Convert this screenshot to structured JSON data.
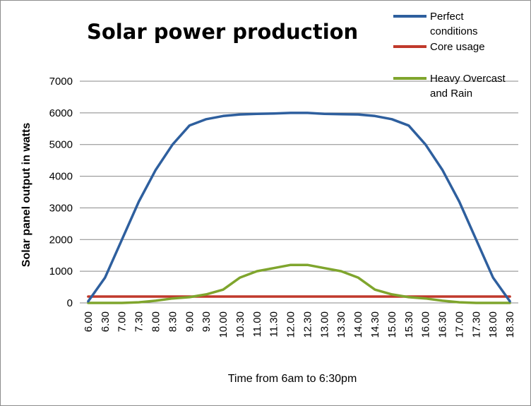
{
  "chart_data": {
    "type": "line",
    "title": "Solar power production",
    "xlabel": "Time from 6am to 6:30pm",
    "ylabel": "Solar panel output in watts",
    "ylim": [
      0,
      7000
    ],
    "yticks": [
      "0",
      "1000",
      "2000",
      "3000",
      "4000",
      "5000",
      "6000",
      "7000"
    ],
    "grid": "horizontal",
    "legend_position": "top-right",
    "categories": [
      "6.00",
      "6.30",
      "7.00",
      "7.30",
      "8.00",
      "8.30",
      "9.00",
      "9.30",
      "10.00",
      "10.30",
      "11.00",
      "11.30",
      "12.00",
      "12.30",
      "13.00",
      "13.30",
      "14.00",
      "14.30",
      "15.00",
      "15.30",
      "16.00",
      "16.30",
      "17.00",
      "17.30",
      "18.00",
      "18.30"
    ],
    "series": [
      {
        "name": "Perfect conditions",
        "legend_lines": [
          "Perfect",
          "conditions"
        ],
        "color": "#2e5f9e",
        "values": [
          50,
          800,
          2000,
          3200,
          4200,
          5000,
          5600,
          5800,
          5900,
          5950,
          5970,
          5980,
          6000,
          6000,
          5970,
          5960,
          5950,
          5900,
          5800,
          5600,
          5000,
          4200,
          3200,
          2000,
          800,
          50
        ]
      },
      {
        "name": "Core usage",
        "legend_lines": [
          "Core usage"
        ],
        "color": "#c0392b",
        "values": [
          200,
          200,
          200,
          200,
          200,
          200,
          200,
          200,
          200,
          200,
          200,
          200,
          200,
          200,
          200,
          200,
          200,
          200,
          200,
          200,
          200,
          200,
          200,
          200,
          200,
          200
        ]
      },
      {
        "name": "Heavy Overcast and Rain",
        "legend_lines": [
          "Heavy Overcast",
          "and Rain"
        ],
        "color": "#7fa52d",
        "values": [
          0,
          0,
          0,
          20,
          70,
          140,
          180,
          270,
          420,
          800,
          1000,
          1100,
          1200,
          1200,
          1100,
          1000,
          800,
          420,
          270,
          180,
          140,
          70,
          20,
          0,
          0,
          0
        ]
      }
    ]
  }
}
